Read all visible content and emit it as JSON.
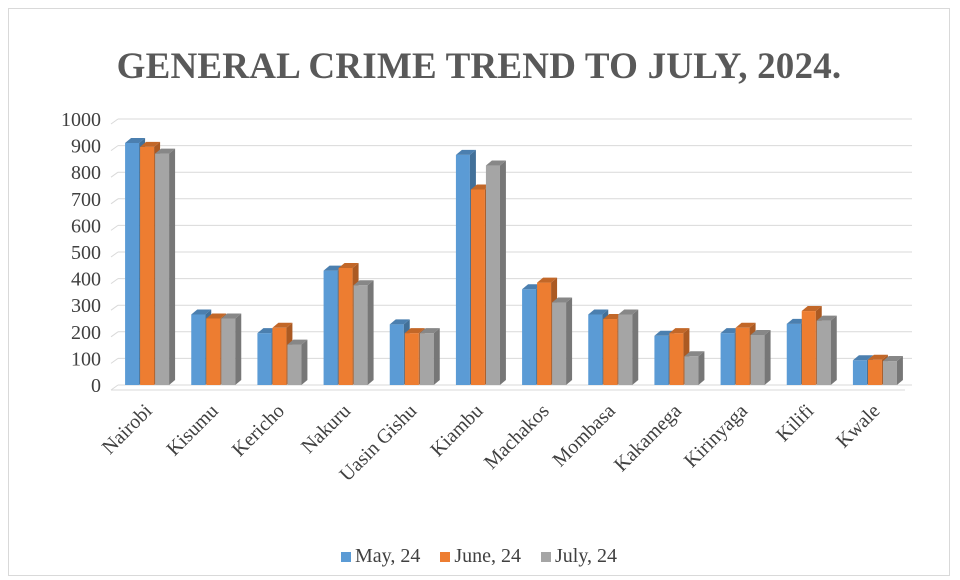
{
  "chart_data": {
    "type": "bar",
    "title": "GENERAL CRIME TREND TO JULY, 2024.",
    "categories": [
      "Nairobi",
      "Kisumu",
      "Kericho",
      "Nakuru",
      "Uasin Gishu",
      "Kiambu",
      "Machakos",
      "Mombasa",
      "Kakamega",
      "Kirinyaga",
      "Kilifi",
      "Kwale"
    ],
    "series": [
      {
        "name": "May, 24",
        "color": "#5b9bd5",
        "values": [
          910,
          265,
          195,
          430,
          228,
          865,
          360,
          265,
          185,
          195,
          230,
          93
        ]
      },
      {
        "name": "June, 24",
        "color": "#ed7d31",
        "values": [
          895,
          250,
          215,
          440,
          195,
          735,
          385,
          248,
          195,
          215,
          278,
          95
        ]
      },
      {
        "name": "July, 24",
        "color": "#a5a5a5",
        "values": [
          870,
          250,
          152,
          375,
          195,
          825,
          310,
          265,
          108,
          188,
          242,
          90
        ]
      }
    ],
    "ylim": [
      0,
      1000
    ],
    "yticks": [
      0,
      100,
      200,
      300,
      400,
      500,
      600,
      700,
      800,
      900,
      1000
    ],
    "grid": true,
    "legend_position": "bottom"
  }
}
